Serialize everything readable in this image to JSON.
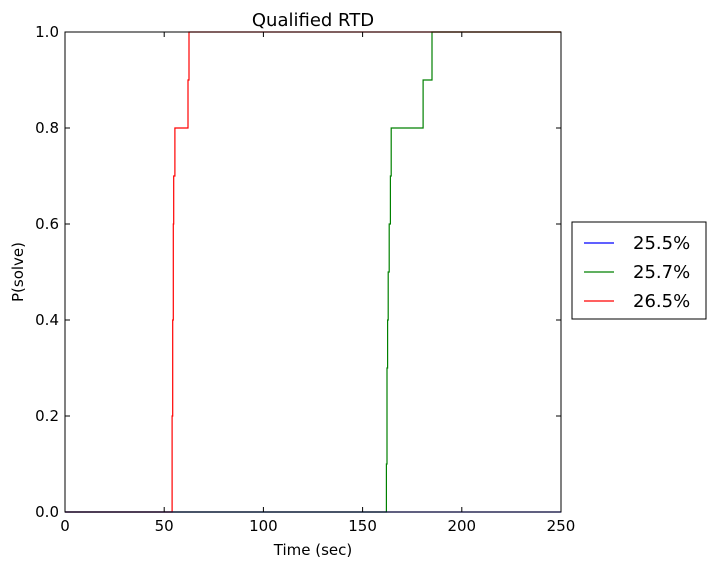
{
  "chart_data": {
    "type": "line",
    "step": true,
    "title": "Qualified RTD",
    "xlabel": "Time (sec)",
    "ylabel": "P(solve)",
    "xlim": [
      0,
      250
    ],
    "ylim": [
      0,
      1.0
    ],
    "xticks": [
      0,
      50,
      100,
      150,
      200,
      250
    ],
    "xtick_labels": [
      "0",
      "50",
      "100",
      "150",
      "200",
      "250"
    ],
    "yticks": [
      0.0,
      0.2,
      0.4,
      0.6,
      0.8,
      1.0
    ],
    "ytick_labels": [
      "0.0",
      "0.2",
      "0.4",
      "0.6",
      "0.8",
      "1.0"
    ],
    "grid": false,
    "legend_position": "right, outside plot",
    "series": [
      {
        "name": "25.5%",
        "color": "#0000ff",
        "points": [
          [
            0,
            0.0
          ],
          [
            250,
            0.0
          ]
        ]
      },
      {
        "name": "25.7%",
        "color": "#008000",
        "points": [
          [
            0,
            0.0
          ],
          [
            162,
            0.0
          ],
          [
            162,
            0.1
          ],
          [
            162.3,
            0.1
          ],
          [
            162.3,
            0.3
          ],
          [
            162.6,
            0.3
          ],
          [
            162.6,
            0.4
          ],
          [
            162.9,
            0.4
          ],
          [
            162.9,
            0.5
          ],
          [
            163.4,
            0.5
          ],
          [
            163.4,
            0.6
          ],
          [
            164,
            0.6
          ],
          [
            164,
            0.7
          ],
          [
            164.4,
            0.7
          ],
          [
            164.4,
            0.8
          ],
          [
            180.5,
            0.8
          ],
          [
            180.5,
            0.9
          ],
          [
            185,
            0.9
          ],
          [
            185,
            1.0
          ],
          [
            250,
            1.0
          ]
        ]
      },
      {
        "name": "26.5%",
        "color": "#ff0000",
        "points": [
          [
            0,
            0.0
          ],
          [
            54,
            0.0
          ],
          [
            54,
            0.2
          ],
          [
            54.3,
            0.2
          ],
          [
            54.3,
            0.4
          ],
          [
            54.6,
            0.4
          ],
          [
            54.6,
            0.6
          ],
          [
            54.8,
            0.6
          ],
          [
            54.8,
            0.7
          ],
          [
            55.4,
            0.7
          ],
          [
            55.4,
            0.8
          ],
          [
            62,
            0.8
          ],
          [
            62,
            0.9
          ],
          [
            62.5,
            0.9
          ],
          [
            62.5,
            1.0
          ],
          [
            250,
            1.0
          ]
        ]
      }
    ]
  }
}
